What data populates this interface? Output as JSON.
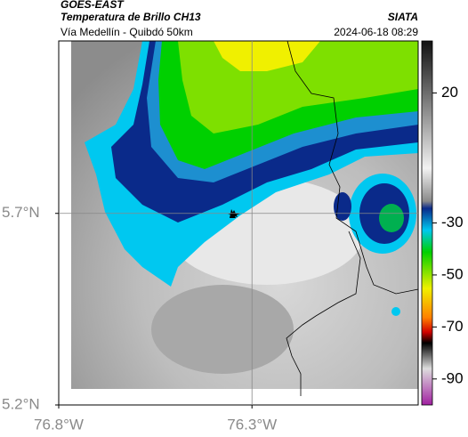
{
  "header": {
    "title": "GOES-EAST",
    "subtitle": "Temperatura de Brillo CH13",
    "source": "SIATA",
    "route": "Vía Medellín - Quibdó 50km",
    "timestamp": "2024-06-18 08:29"
  },
  "map": {
    "lonlim": [
      -76.8,
      -75.87
    ],
    "latlim": [
      5.2,
      6.15
    ],
    "lon_ticks": [
      {
        "value": -76.8,
        "label": "76.8°W"
      },
      {
        "value": -76.3,
        "label": "76.3°W"
      }
    ],
    "lat_ticks": [
      {
        "value": 5.7,
        "label": "5.7°N"
      },
      {
        "value": 5.2,
        "label": "5.2°N"
      }
    ],
    "grid": true
  },
  "colorbar": {
    "lim": [
      -100,
      40
    ],
    "ticks": [
      20,
      -30,
      -50,
      -70,
      -90
    ]
  }
}
